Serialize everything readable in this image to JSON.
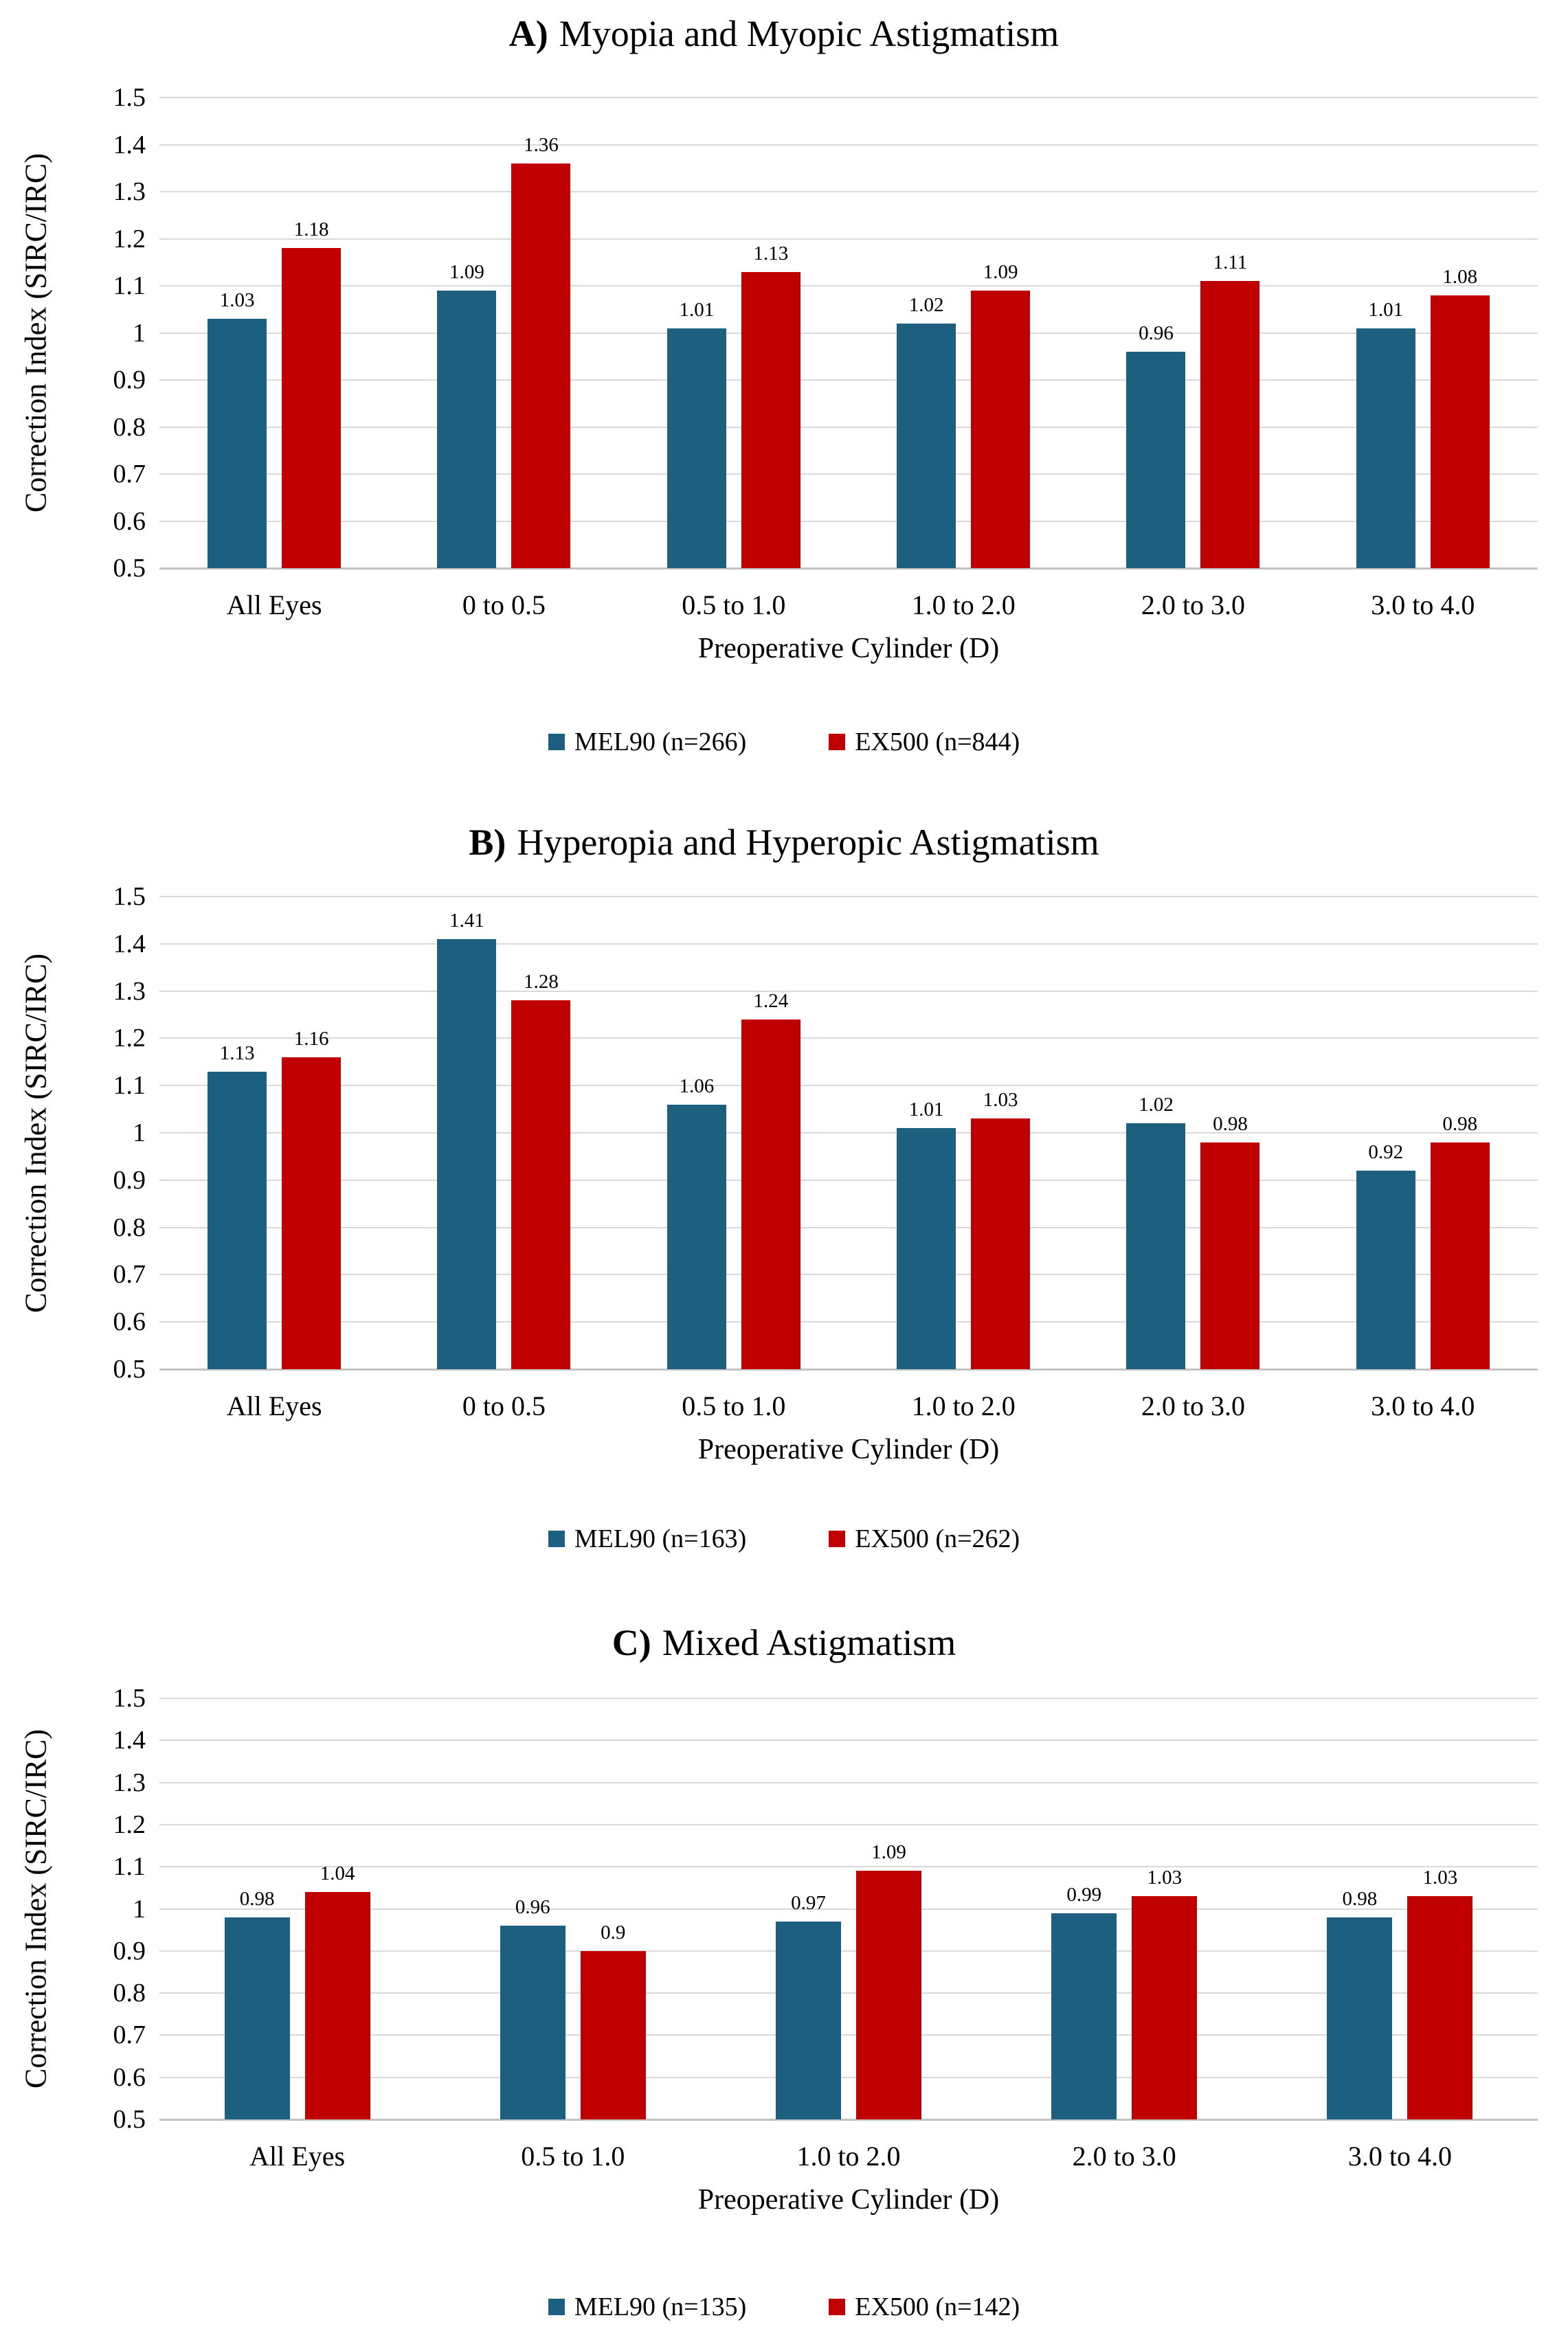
{
  "page": {
    "background": "#ffffff"
  },
  "colors": {
    "mel90": "#1d5f7e",
    "ex500": "#c00000",
    "gridline": "#d9d9d9",
    "axis_line": "#c3c3c3",
    "text": "#000000"
  },
  "chart_data": [
    {
      "id": "A",
      "type": "bar",
      "title_prefix": "A)",
      "title": "Myopia and Myopic Astigmatism",
      "ylabel": "Correction Index (SIRC/IRC)",
      "xlabel": "Preoperative Cylinder (D)",
      "ylim": [
        0.5,
        1.5
      ],
      "yticks": [
        1.5,
        1.4,
        1.3,
        1.2,
        1.1,
        1,
        0.9,
        0.8,
        0.7,
        0.6,
        0.5
      ],
      "ytick_labels": [
        "1.5",
        "1.4",
        "1.3",
        "1.2",
        "1.1",
        "1",
        "0.9",
        "0.8",
        "0.7",
        "0.6",
        "0.5"
      ],
      "grid": true,
      "legend_position": "bottom",
      "categories": [
        "All Eyes",
        "0 to 0.5",
        "0.5 to 1.0",
        "1.0 to 2.0",
        "2.0 to 3.0",
        "3.0 to 4.0"
      ],
      "series": [
        {
          "name": "MEL90 (n=266)",
          "color_key": "mel90",
          "values": [
            1.03,
            1.09,
            1.01,
            1.02,
            0.96,
            1.01
          ],
          "labels": [
            "1.03",
            "1.09",
            "1.01",
            "1.02",
            "0.96",
            "1.01"
          ]
        },
        {
          "name": "EX500 (n=844)",
          "color_key": "ex500",
          "values": [
            1.18,
            1.36,
            1.13,
            1.09,
            1.11,
            1.08
          ],
          "labels": [
            "1.18",
            "1.36",
            "1.13",
            "1.09",
            "1.11",
            "1.08"
          ]
        }
      ]
    },
    {
      "id": "B",
      "type": "bar",
      "title_prefix": "B)",
      "title": "Hyperopia and Hyperopic Astigmatism",
      "ylabel": "Correction Index (SIRC/IRC)",
      "xlabel": "Preoperative Cylinder (D)",
      "ylim": [
        0.5,
        1.5
      ],
      "yticks": [
        1.5,
        1.4,
        1.3,
        1.2,
        1.1,
        1,
        0.9,
        0.8,
        0.7,
        0.6,
        0.5
      ],
      "ytick_labels": [
        "1.5",
        "1.4",
        "1.3",
        "1.2",
        "1.1",
        "1",
        "0.9",
        "0.8",
        "0.7",
        "0.6",
        "0.5"
      ],
      "grid": true,
      "legend_position": "bottom",
      "categories": [
        "All Eyes",
        "0 to 0.5",
        "0.5 to 1.0",
        "1.0 to 2.0",
        "2.0 to 3.0",
        "3.0 to 4.0"
      ],
      "series": [
        {
          "name": "MEL90 (n=163)",
          "color_key": "mel90",
          "values": [
            1.13,
            1.41,
            1.06,
            1.01,
            1.02,
            0.92
          ],
          "labels": [
            "1.13",
            "1.41",
            "1.06",
            "1.01",
            "1.02",
            "0.92"
          ]
        },
        {
          "name": "EX500 (n=262)",
          "color_key": "ex500",
          "values": [
            1.16,
            1.28,
            1.24,
            1.03,
            0.98,
            0.98
          ],
          "labels": [
            "1.16",
            "1.28",
            "1.24",
            "1.03",
            "0.98",
            "0.98"
          ]
        }
      ]
    },
    {
      "id": "C",
      "type": "bar",
      "title_prefix": "C)",
      "title": "Mixed Astigmatism",
      "ylabel": "Correction Index (SIRC/IRC)",
      "xlabel": "Preoperative Cylinder (D)",
      "ylim": [
        0.5,
        1.5
      ],
      "yticks": [
        1.5,
        1.4,
        1.3,
        1.2,
        1.1,
        1,
        0.9,
        0.8,
        0.7,
        0.6,
        0.5
      ],
      "ytick_labels": [
        "1.5",
        "1.4",
        "1.3",
        "1.2",
        "1.1",
        "1",
        "0.9",
        "0.8",
        "0.7",
        "0.6",
        "0.5"
      ],
      "grid": true,
      "legend_position": "bottom",
      "categories": [
        "All Eyes",
        "0.5 to 1.0",
        "1.0 to 2.0",
        "2.0 to 3.0",
        "3.0 to 4.0"
      ],
      "series": [
        {
          "name": "MEL90 (n=135)",
          "color_key": "mel90",
          "values": [
            0.98,
            0.96,
            0.97,
            0.99,
            0.98
          ],
          "labels": [
            "0.98",
            "0.96",
            "0.97",
            "0.99",
            "0.98"
          ]
        },
        {
          "name": "EX500 (n=142)",
          "color_key": "ex500",
          "values": [
            1.04,
            0.9,
            1.09,
            1.03,
            1.03
          ],
          "labels": [
            "1.04",
            "0.9",
            "1.09",
            "1.03",
            "1.03"
          ]
        }
      ]
    }
  ]
}
